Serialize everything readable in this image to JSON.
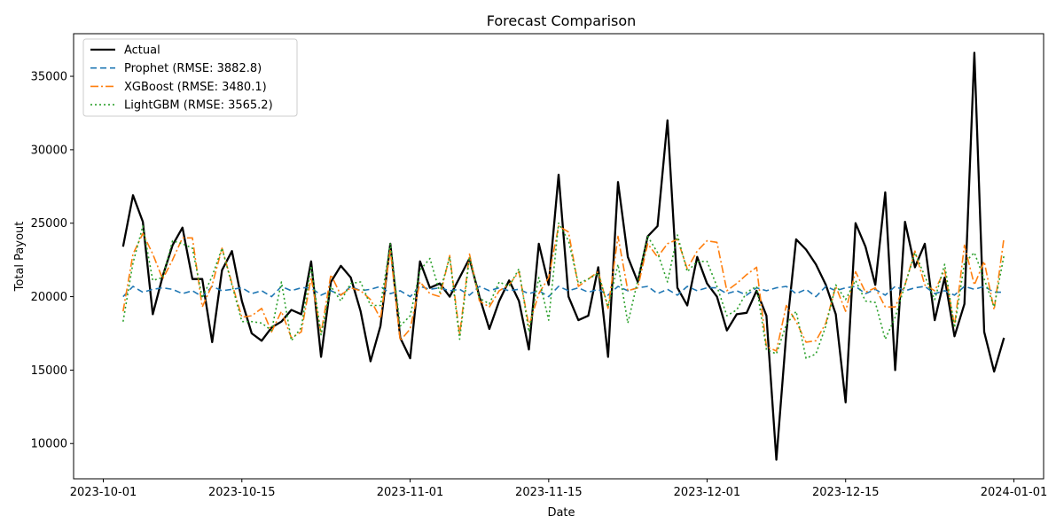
{
  "chart_data": {
    "type": "line",
    "title": "Forecast Comparison",
    "xlabel": "Date",
    "ylabel": "Total Payout",
    "x_start": "2023-10-03",
    "x_ticks": [
      "2023-10-01",
      "2023-10-15",
      "2023-11-01",
      "2023-11-15",
      "2023-12-01",
      "2023-12-15",
      "2024-01-01"
    ],
    "y_ticks": [
      10000,
      15000,
      20000,
      25000,
      30000,
      35000
    ],
    "ylim": [
      7600,
      37900
    ],
    "grid": false,
    "legend_position": "top-left",
    "series": [
      {
        "name": "Actual",
        "color": "#000000",
        "style": "solid",
        "values": [
          23400,
          26900,
          25100,
          18800,
          21400,
          23500,
          24700,
          21200,
          21200,
          16900,
          21800,
          23100,
          19700,
          17500,
          17000,
          17900,
          18300,
          19100,
          18800,
          22400,
          15900,
          21000,
          22100,
          21300,
          19000,
          15600,
          18000,
          23600,
          17200,
          15800,
          22400,
          20600,
          20900,
          20000,
          21300,
          22600,
          20000,
          17800,
          19700,
          21100,
          19700,
          16400,
          23600,
          20800,
          28300,
          20000,
          18400,
          18700,
          22000,
          15900,
          27800,
          22700,
          21000,
          24100,
          24800,
          32000,
          20600,
          19400,
          22700,
          20900,
          20000,
          17700,
          18800,
          18900,
          20400,
          18700,
          8900,
          17500,
          23900,
          23200,
          22200,
          20800,
          18800,
          12800,
          25000,
          23400,
          20800,
          27100,
          15000,
          25100,
          22000,
          23600,
          18400,
          21300,
          17300,
          19500,
          36600,
          17600,
          14900,
          17200
        ]
      },
      {
        "name": "Prophet (RMSE: 3882.8)",
        "color": "#1f77b4",
        "style": "dashed",
        "values": [
          20000,
          20700,
          20300,
          20500,
          20600,
          20500,
          20200,
          20400,
          20000,
          20700,
          20400,
          20500,
          20600,
          20200,
          20400,
          20000,
          20700,
          20400,
          20600,
          20600,
          20100,
          20400,
          20100,
          20700,
          20400,
          20500,
          20700,
          20200,
          20400,
          20000,
          20700,
          20500,
          20600,
          20400,
          20500,
          20100,
          20700,
          20400,
          20600,
          20400,
          20500,
          20200,
          20400,
          20000,
          20700,
          20400,
          20600,
          20300,
          20500,
          20100,
          20700,
          20400,
          20600,
          20700,
          20200,
          20500,
          20100,
          20700,
          20400,
          20600,
          20600,
          20200,
          20400,
          20100,
          20600,
          20400,
          20600,
          20700,
          20200,
          20500,
          20000,
          20700,
          20400,
          20600,
          20700,
          20200,
          20500,
          20100,
          20700,
          20400,
          20600,
          20700,
          20200,
          20400,
          20100,
          20700,
          20500,
          20700,
          20300,
          20300
        ]
      },
      {
        "name": "XGBoost (RMSE: 3480.1)",
        "color": "#ff7f0e",
        "style": "dashdot",
        "values": [
          19000,
          22900,
          24300,
          22900,
          21200,
          22500,
          24000,
          24000,
          19300,
          20800,
          23300,
          20900,
          18600,
          18700,
          19200,
          17600,
          19000,
          17200,
          17600,
          21300,
          17500,
          21500,
          20100,
          20600,
          20400,
          19800,
          18500,
          23200,
          17000,
          17800,
          21000,
          20200,
          20000,
          22800,
          17400,
          22900,
          19700,
          19300,
          20400,
          20800,
          21700,
          18000,
          20200,
          21300,
          24800,
          24400,
          20700,
          21200,
          21700,
          19200,
          24100,
          20400,
          20600,
          23600,
          22700,
          23600,
          23900,
          21900,
          23100,
          23800,
          23700,
          20400,
          20900,
          21500,
          22000,
          16600,
          16300,
          19400,
          18300,
          16900,
          17000,
          18200,
          20700,
          19000,
          21700,
          20300,
          20600,
          19300,
          19300,
          20800,
          23100,
          20800,
          20400,
          21800,
          18000,
          23500,
          20800,
          22400,
          19100,
          24000
        ]
      },
      {
        "name": "LightGBM (RMSE: 3565.2)",
        "color": "#2ca02c",
        "style": "dotted",
        "values": [
          18300,
          22300,
          24800,
          21100,
          21300,
          23800,
          23600,
          23300,
          19900,
          21400,
          23300,
          20800,
          18300,
          18300,
          18200,
          17700,
          21000,
          17000,
          17900,
          22100,
          17400,
          20700,
          19700,
          20900,
          21000,
          19400,
          19400,
          23600,
          18000,
          18700,
          21800,
          22600,
          20300,
          22700,
          17100,
          22700,
          19900,
          19500,
          21000,
          20700,
          21900,
          17600,
          21300,
          18400,
          25000,
          23800,
          20900,
          21200,
          21600,
          19300,
          22200,
          18200,
          21100,
          24100,
          23000,
          21000,
          24200,
          21700,
          22400,
          22400,
          20700,
          18700,
          19100,
          20300,
          20700,
          16400,
          16100,
          18100,
          19000,
          15800,
          16100,
          18000,
          20800,
          19800,
          21100,
          19700,
          19600,
          17100,
          18600,
          20800,
          23000,
          21400,
          19800,
          22200,
          17900,
          22300,
          23000,
          21200,
          19300,
          22800
        ]
      }
    ]
  }
}
